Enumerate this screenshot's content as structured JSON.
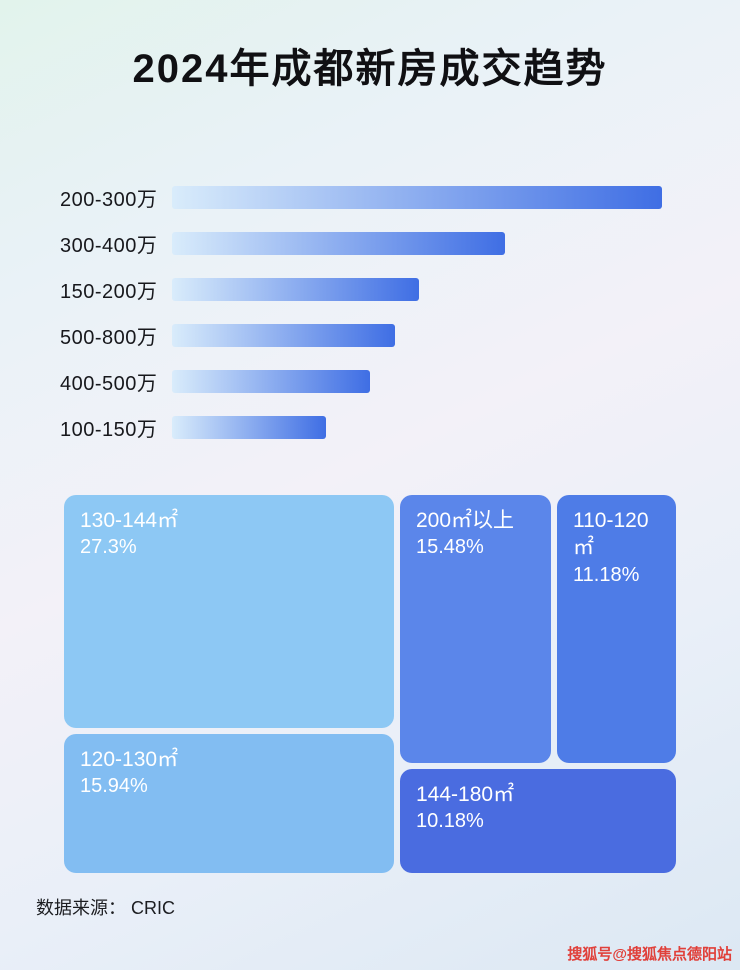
{
  "page": {
    "title": "2024年成都新房成交趋势",
    "source_note": "数据来源： CRIC",
    "watermark": "搜狐号@搜狐焦点德阳站"
  },
  "colors": {
    "bar_gradient_start": "#d9ecfb",
    "bar_gradient_end": "#3f6ee4",
    "title_color": "#101013",
    "watermark_color": "#e0403a"
  },
  "chart_data": [
    {
      "type": "bar",
      "orientation": "horizontal",
      "categories": [
        "200-300万",
        "300-400万",
        "150-200万",
        "500-800万",
        "400-500万",
        "100-150万"
      ],
      "values": [
        100,
        68,
        50.5,
        45.5,
        40.5,
        31.5
      ],
      "value_note": "no numeric axis or data labels shown; values are relative bar lengths as % of longest bar",
      "xlabel": "",
      "ylabel": "",
      "grid": false,
      "legend": false
    },
    {
      "type": "treemap",
      "blocks": [
        {
          "label": "130-144㎡",
          "value": "27.3%",
          "color": "#8dc8f4"
        },
        {
          "label": "200㎡以上",
          "value": "15.48%",
          "color": "#5b86ea"
        },
        {
          "label": "110-120㎡",
          "value": "11.18%",
          "color": "#4e7ce7"
        },
        {
          "label": "120-130㎡",
          "value": "15.94%",
          "color": "#82bdf2"
        },
        {
          "label": "144-180㎡",
          "value": "10.18%",
          "color": "#4a6ce0"
        }
      ]
    }
  ]
}
